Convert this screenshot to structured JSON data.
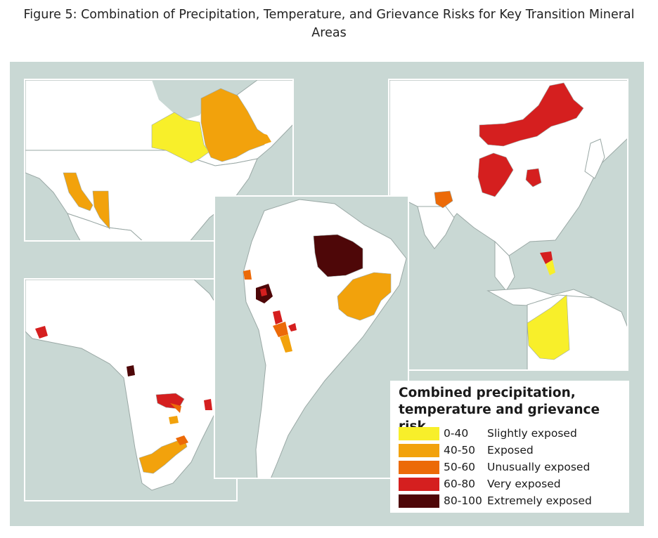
{
  "figure": {
    "title_line1": "Figure 5: Combination of Precipitation, Temperature, and Grievance Risks for Key Transition Mineral",
    "title_line2": "Areas"
  },
  "regions": [
    "North America",
    "South America",
    "Africa",
    "Asia and Australia"
  ],
  "legend": {
    "title_line1": "Combined precipitation,",
    "title_line2": "temperature and grievance risk",
    "items": [
      {
        "range": "0-40",
        "label": "Slightly exposed",
        "color": "#f8ef2a"
      },
      {
        "range": "40-50",
        "label": "Exposed",
        "color": "#f2a20c"
      },
      {
        "range": "50-60",
        "label": "Unusually exposed",
        "color": "#ec6a08"
      },
      {
        "range": "60-80",
        "label": "Very exposed",
        "color": "#d51f1f"
      },
      {
        "range": "80-100",
        "label": "Extremely exposed",
        "color": "#4e0708"
      }
    ]
  },
  "colors": {
    "water": "#c9d8d4",
    "land": "#ffffff",
    "neighbor_land": "#ffffff",
    "border": "#9aa8a5",
    "slightly": "#f8ef2a",
    "exposed": "#f2a20c",
    "unusually": "#ec6a08",
    "very": "#d51f1f",
    "extremely": "#4e0708"
  }
}
